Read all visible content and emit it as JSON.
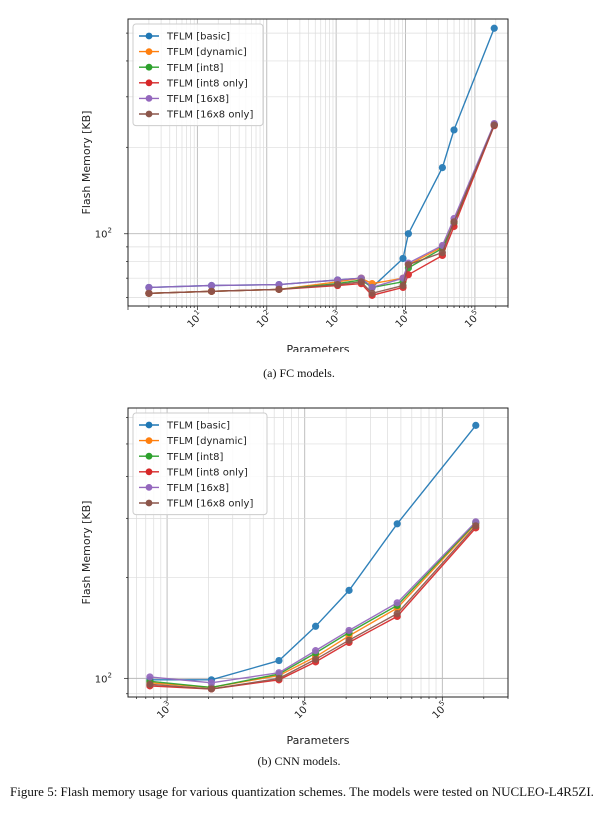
{
  "chart_data": [
    {
      "type": "line",
      "xlabel": "Parameters",
      "ylabel": "Flash Memory [KB]",
      "xscale": "log",
      "yscale": "log",
      "xlim": [
        1,
        300000
      ],
      "ylim": [
        56,
        560
      ],
      "grid": true,
      "legend": "upper-left",
      "xticks": [
        {
          "v": 10,
          "label": "10",
          "exp": "1"
        },
        {
          "v": 100,
          "label": "10",
          "exp": "2"
        },
        {
          "v": 1000,
          "label": "10",
          "exp": "3"
        },
        {
          "v": 10000,
          "label": "10",
          "exp": "4"
        },
        {
          "v": 100000,
          "label": "10",
          "exp": "5"
        }
      ],
      "yticks": [
        {
          "v": 100,
          "label": "10",
          "exp": "2"
        }
      ],
      "x": [
        2,
        16,
        150,
        1050,
        2300,
        3300,
        9200,
        11000,
        34000,
        50000,
        190000
      ],
      "series": [
        {
          "name": "TFLM [basic]",
          "color": "#1f77b4",
          "values": [
            65,
            66,
            66.5,
            69,
            70,
            65,
            82,
            100,
            170,
            230,
            520
          ]
        },
        {
          "name": "TFLM [dynamic]",
          "color": "#ff7f0e",
          "values": [
            62,
            63,
            64,
            68,
            70,
            67,
            70,
            78,
            90,
            110,
            240
          ]
        },
        {
          "name": "TFLM [int8]",
          "color": "#2ca02c",
          "values": [
            62,
            63,
            64,
            67,
            69,
            65,
            68,
            76,
            89,
            109,
            240
          ]
        },
        {
          "name": "TFLM [int8 only]",
          "color": "#d62728",
          "values": [
            62,
            63,
            64,
            66,
            67,
            61,
            65,
            72,
            84,
            106,
            238
          ]
        },
        {
          "name": "TFLM [16x8]",
          "color": "#9467bd",
          "values": [
            65,
            66,
            66.5,
            69,
            70,
            65,
            70,
            79,
            91,
            113,
            242
          ]
        },
        {
          "name": "TFLM [16x8 only]",
          "color": "#8c564b",
          "values": [
            62,
            63,
            64,
            66.5,
            68,
            62,
            66,
            78,
            86,
            110,
            239
          ]
        }
      ]
    },
    {
      "type": "line",
      "xlabel": "Parameters",
      "ylabel": "Flash Memory [KB]",
      "xscale": "log",
      "yscale": "log",
      "xlim": [
        520,
        300000
      ],
      "ylim": [
        88,
        640
      ],
      "grid": true,
      "legend": "upper-left",
      "xticks": [
        {
          "v": 1000,
          "label": "10",
          "exp": "3"
        },
        {
          "v": 10000,
          "label": "10",
          "exp": "4"
        },
        {
          "v": 100000,
          "label": "10",
          "exp": "5"
        }
      ],
      "yticks": [
        {
          "v": 100,
          "label": "10",
          "exp": "2"
        }
      ],
      "x": [
        750,
        2100,
        6500,
        12000,
        21000,
        47000,
        175000
      ],
      "series": [
        {
          "name": "TFLM [basic]",
          "color": "#1f77b4",
          "values": [
            99,
            99,
            113,
            143,
            183,
            289,
            568
          ]
        },
        {
          "name": "TFLM [dynamic]",
          "color": "#ff7f0e",
          "values": [
            97,
            94,
            102,
            116,
            134,
            162,
            289
          ]
        },
        {
          "name": "TFLM [int8]",
          "color": "#2ca02c",
          "values": [
            98,
            94,
            103,
            119,
            137,
            165,
            291
          ]
        },
        {
          "name": "TFLM [int8 only]",
          "color": "#d62728",
          "values": [
            95,
            93,
            99,
            112,
            128,
            153,
            281
          ]
        },
        {
          "name": "TFLM [16x8]",
          "color": "#9467bd",
          "values": [
            101,
            97,
            104,
            121,
            139,
            168,
            293
          ]
        },
        {
          "name": "TFLM [16x8 only]",
          "color": "#8c564b",
          "values": [
            96,
            93,
            100,
            114,
            130,
            156,
            285
          ]
        }
      ]
    }
  ],
  "subcaptions": [
    "(a) FC models.",
    "(b) CNN models."
  ],
  "figure_caption": "Figure 5: Flash memory usage for various quantization schemes. The models were tested on NUCLEO-L4R5ZI."
}
